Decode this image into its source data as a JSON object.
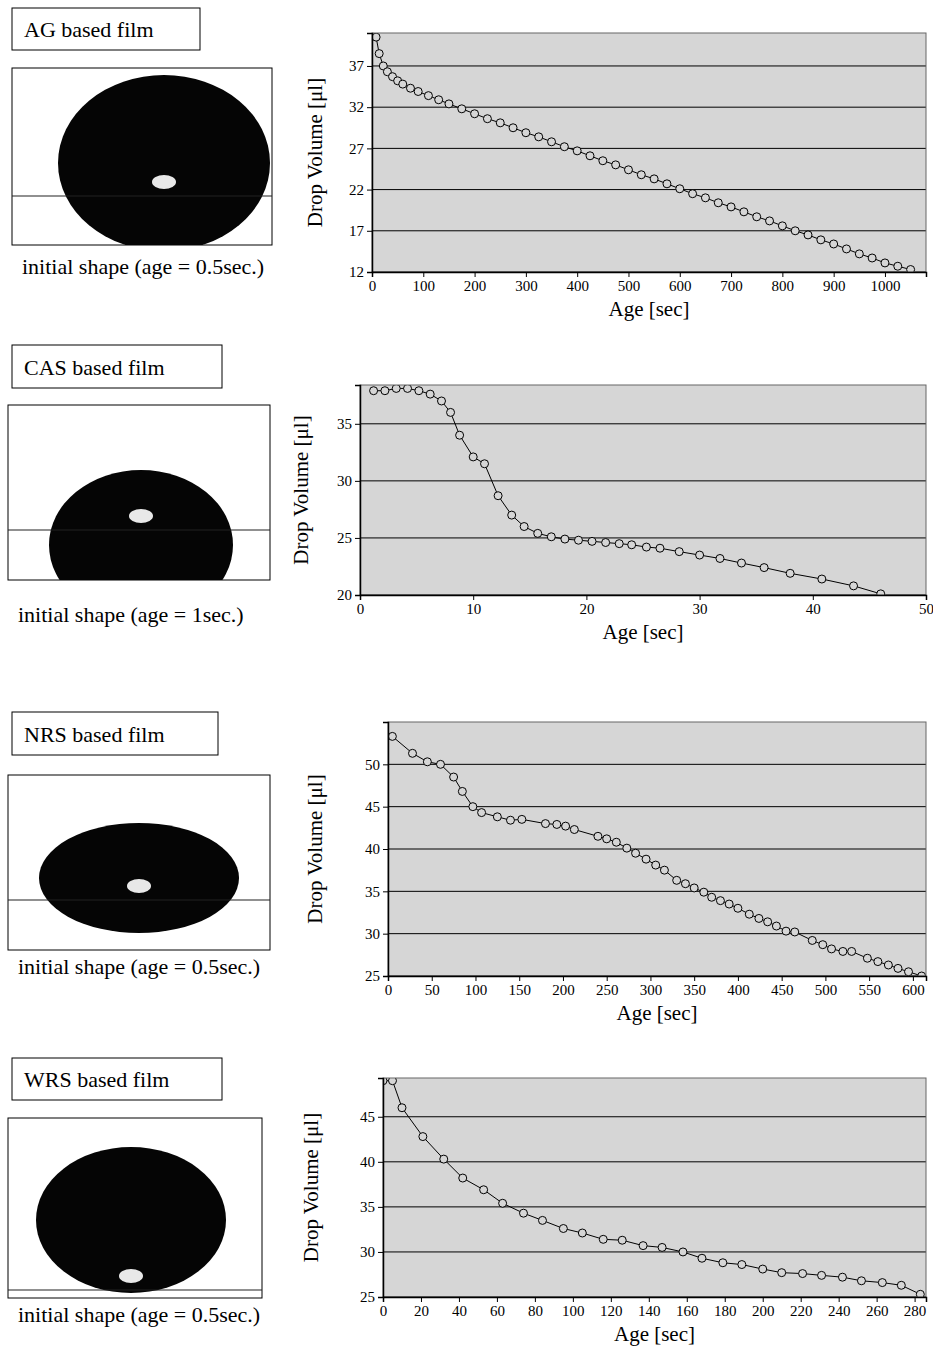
{
  "chart_data": [
    {
      "type": "line",
      "title": "AG based film",
      "subtitle": "initial shape (age = 0.5sec.)",
      "x_label": "Age [sec]",
      "y_label": "Drop Volume [μl]",
      "x": [
        8,
        14,
        22,
        30,
        40,
        50,
        60,
        75,
        90,
        110,
        130,
        150,
        175,
        200,
        225,
        250,
        275,
        300,
        325,
        350,
        375,
        400,
        425,
        450,
        475,
        500,
        525,
        550,
        575,
        600,
        625,
        650,
        675,
        700,
        725,
        750,
        775,
        800,
        825,
        850,
        875,
        900,
        925,
        950,
        975,
        1000,
        1025,
        1050
      ],
      "values": [
        40.5,
        38.5,
        37,
        36.3,
        35.7,
        35.2,
        34.8,
        34.3,
        33.9,
        33.4,
        32.9,
        32.4,
        31.8,
        31.2,
        30.6,
        30.1,
        29.5,
        28.9,
        28.4,
        27.8,
        27.2,
        26.7,
        26.1,
        25.5,
        25.0,
        24.4,
        23.8,
        23.3,
        22.7,
        22.1,
        21.5,
        21.0,
        20.4,
        19.9,
        19.3,
        18.7,
        18.2,
        17.6,
        17.0,
        16.5,
        15.9,
        15.4,
        14.8,
        14.2,
        13.7,
        13.1,
        12.7,
        12.3
      ],
      "xlim": [
        0,
        1080
      ],
      "ylim": [
        12,
        41
      ],
      "xticks": [
        0,
        100,
        200,
        300,
        400,
        500,
        600,
        700,
        800,
        900,
        1000
      ],
      "yticks": [
        12,
        17,
        22,
        27,
        32,
        37
      ],
      "grid": true,
      "marker": "circle",
      "color": "#000000"
    },
    {
      "type": "line",
      "title": "CAS based film",
      "subtitle": "initial shape (age = 1sec.)",
      "x_label": "Age [sec]",
      "y_label": "Drop Volume [μl]",
      "x": [
        1.2,
        2.2,
        3.2,
        4.2,
        5.2,
        6.2,
        7.2,
        8,
        8.8,
        10,
        11,
        12.2,
        13.4,
        14.5,
        15.7,
        16.9,
        18.1,
        19.3,
        20.5,
        21.7,
        22.9,
        24,
        25.3,
        26.5,
        28.2,
        30,
        31.8,
        33.7,
        35.7,
        38,
        40.8,
        43.6,
        46
      ],
      "values": [
        37.9,
        37.9,
        38.1,
        38.1,
        37.9,
        37.6,
        37,
        36,
        34,
        32.1,
        31.5,
        28.7,
        27,
        26,
        25.4,
        25.1,
        24.9,
        24.8,
        24.7,
        24.6,
        24.5,
        24.4,
        24.2,
        24.1,
        23.8,
        23.5,
        23.2,
        22.8,
        22.4,
        21.9,
        21.4,
        20.8,
        20.1
      ],
      "xlim": [
        0,
        50
      ],
      "ylim": [
        20,
        38.4
      ],
      "xticks": [
        0,
        10,
        20,
        30,
        40,
        50
      ],
      "yticks": [
        20,
        25,
        30,
        35
      ],
      "grid": true,
      "marker": "circle",
      "color": "#000000"
    },
    {
      "type": "line",
      "title": "NRS based film",
      "subtitle": "initial shape (age = 0.5sec.)",
      "x_label": "Age [sec]",
      "y_label": "Drop Volume [μl]",
      "x": [
        5,
        28,
        45,
        60,
        75,
        85,
        97,
        107,
        125,
        140,
        153,
        180,
        193,
        203,
        213,
        240,
        250,
        261,
        273,
        283,
        295,
        306,
        316,
        330,
        340,
        350,
        361,
        370,
        380,
        390,
        400,
        413,
        424,
        434,
        444,
        455,
        465,
        485,
        497,
        507,
        520,
        530,
        548,
        560,
        572,
        583,
        595,
        610
      ],
      "values": [
        53.3,
        51.3,
        50.3,
        50,
        48.5,
        46.8,
        45,
        44.3,
        43.8,
        43.4,
        43.5,
        43,
        42.9,
        42.7,
        42.3,
        41.5,
        41.2,
        40.8,
        40.1,
        39.5,
        38.8,
        38.1,
        37.5,
        36.3,
        35.9,
        35.4,
        34.9,
        34.3,
        33.9,
        33.5,
        33,
        32.3,
        31.8,
        31.4,
        30.9,
        30.3,
        30.2,
        29.2,
        28.7,
        28.2,
        27.9,
        27.9,
        27.1,
        26.7,
        26.3,
        25.9,
        25.5,
        25
      ],
      "xlim": [
        0,
        615
      ],
      "ylim": [
        25,
        55
      ],
      "xticks": [
        0,
        50,
        100,
        150,
        200,
        250,
        300,
        350,
        400,
        450,
        500,
        550,
        600
      ],
      "yticks": [
        25,
        30,
        35,
        40,
        45,
        50
      ],
      "grid": true,
      "marker": "circle",
      "color": "#000000"
    },
    {
      "type": "line",
      "title": "WRS based film",
      "subtitle": "initial shape (age = 0.5sec.)",
      "x_label": "Age [sec]",
      "y_label": "Drop Volume [μl]",
      "x": [
        0,
        5,
        10,
        21,
        32,
        42,
        53,
        63,
        74,
        84,
        95,
        105,
        116,
        126,
        137,
        147,
        158,
        168,
        179,
        189,
        200,
        210,
        221,
        231,
        242,
        252,
        263,
        273,
        283
      ],
      "values": [
        49,
        49,
        46,
        42.8,
        40.3,
        38.2,
        36.9,
        35.4,
        34.3,
        33.5,
        32.6,
        32.1,
        31.4,
        31.3,
        30.7,
        30.5,
        30,
        29.3,
        28.8,
        28.6,
        28.1,
        27.7,
        27.6,
        27.4,
        27.2,
        26.8,
        26.6,
        26.3,
        25.3
      ],
      "xlim": [
        0,
        286
      ],
      "ylim": [
        25,
        49.3
      ],
      "xticks": [
        0,
        20,
        40,
        60,
        80,
        100,
        120,
        140,
        160,
        180,
        200,
        220,
        240,
        260,
        280
      ],
      "yticks": [
        25,
        30,
        35,
        40,
        45
      ],
      "grid": true,
      "marker": "circle",
      "color": "#000000"
    }
  ]
}
